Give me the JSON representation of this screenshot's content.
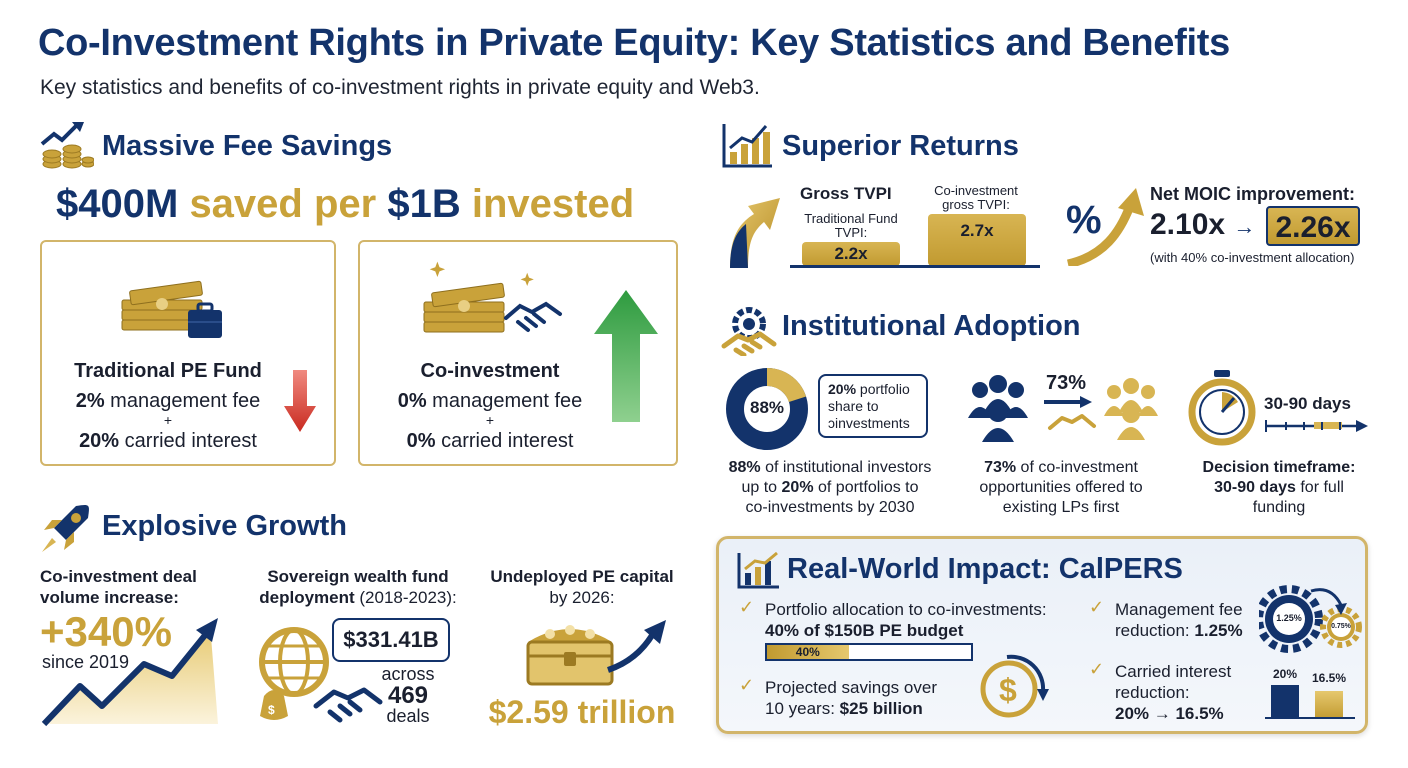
{
  "header": {
    "title": "Co-Investment Rights in Private Equity: Key Statistics and Benefits",
    "subtitle": "Key statistics and benefits of co-investment rights in private equity and Web3."
  },
  "fee_savings": {
    "heading": "Massive Fee Savings",
    "headline_a": "$400M",
    "headline_b": "saved per",
    "headline_c": "$1B",
    "headline_d": "invested",
    "traditional": {
      "title": "Traditional PE Fund",
      "fee_pct": "2%",
      "fee_label": "management fee",
      "plus": "+",
      "carry_pct": "20%",
      "carry_label": "carried interest"
    },
    "coinvest": {
      "title": "Co-investment",
      "fee_pct": "0%",
      "fee_label": "management fee",
      "plus": "+",
      "carry_pct": "0%",
      "carry_label": "carried interest"
    }
  },
  "returns": {
    "heading": "Superior Returns",
    "gross_tvpi_label": "Gross TVPI",
    "trad_label": "Traditional Fund TVPI:",
    "trad_value": "2.2x",
    "co_label": "Co-investment gross TVPI:",
    "co_value": "2.7x",
    "percent_symbol": "%",
    "moic_label": "Net MOIC improvement:",
    "moic_from": "2.10x",
    "moic_arrow": "→",
    "moic_to": "2.26x",
    "moic_note": "(with 40% co-investment allocation)"
  },
  "adoption": {
    "heading": "Institutional Adoption",
    "donut_value": "88%",
    "donut_fraction": 0.2,
    "bubble_a": "20%",
    "bubble_b": "portfolio",
    "bubble_c": "share to",
    "bubble_d": "ↄinvestments",
    "stat1_a": "88%",
    "stat1_b": "of institutional investors",
    "stat1_c": "up to",
    "stat1_d": "20%",
    "stat1_e": "of portfolios to",
    "stat1_f": "co-investments by 2030",
    "people_pct": "73%",
    "stat2_a": "73%",
    "stat2_b": "of co-investment",
    "stat2_c": "opportunities offered to",
    "stat2_d": "existing LPs first",
    "days_label": "30-90 days",
    "stat3_a": "Decision timeframe:",
    "stat3_b": "30-90 days",
    "stat3_c": "for full",
    "stat3_d": "funding"
  },
  "growth": {
    "heading": "Explosive Growth",
    "deal_label_a": "Co-investment deal",
    "deal_label_b": "volume increase:",
    "deal_value": "+340%",
    "deal_since": "since 2019",
    "swf_label_a": "Sovereign wealth fund",
    "swf_label_b": "deployment",
    "swf_label_c": "(2018-2023):",
    "swf_value": "$331.41B",
    "swf_across": "across",
    "swf_deals_num": "469",
    "swf_deals": "deals",
    "undeployed_a": "Undeployed PE capital",
    "undeployed_b": "by 2026:",
    "undeployed_value": "$2.59 trillion"
  },
  "calpers": {
    "heading": "Real-World Impact: CalPERS",
    "item1_a": "Portfolio allocation to co-investments:",
    "item1_b": "40% of $150B PE budget",
    "bar_label": "40%",
    "bar_fraction": 0.4,
    "item2_a": "Projected savings over",
    "item2_b": "10 years:",
    "item2_c": "$25 billion",
    "item3_a": "Management fee",
    "item3_b": "reduction:",
    "item3_c": "1.25%",
    "gear_big": "1.25%",
    "gear_small": "0.75%",
    "item4_a": "Carried interest",
    "item4_b": "reduction:",
    "item4_c": "20% → 16.5%",
    "bar1_label": "20%",
    "bar1_value": 20,
    "bar2_label": "16.5%",
    "bar2_value": 16.5
  },
  "colors": {
    "navy": "#13336b",
    "gold": "#c9a23a",
    "green": "#2e9b3f",
    "red": "#d43a2f"
  }
}
